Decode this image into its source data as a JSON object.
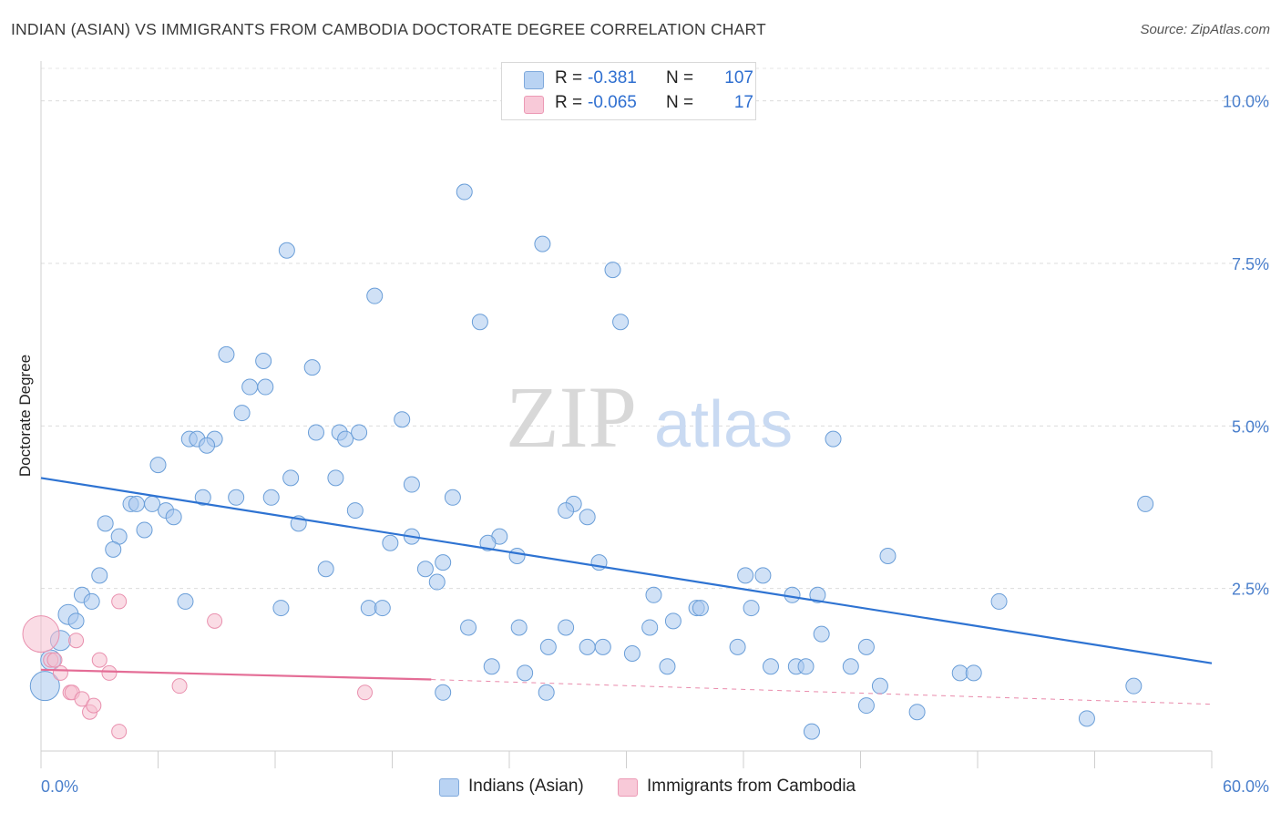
{
  "header": {
    "title": "INDIAN (ASIAN) VS IMMIGRANTS FROM CAMBODIA DOCTORATE DEGREE CORRELATION CHART",
    "source": "Source: ZipAtlas.com"
  },
  "watermark": {
    "zip": "ZIP",
    "atlas": "atlas"
  },
  "colors": {
    "blue_fill": "#a9c8ef",
    "blue_stroke": "#6a9ed8",
    "blue_line": "#2e73d2",
    "pink_fill": "#f6bfd0",
    "pink_stroke": "#e990ae",
    "pink_line": "#e46d96",
    "accent_text": "#2f6fd0"
  },
  "legend": {
    "rows": [
      {
        "r_label": "R =",
        "r_value": "-0.381",
        "n_label": "N =",
        "n_value": "107"
      },
      {
        "r_label": "R =",
        "r_value": "-0.065",
        "n_label": "N =",
        "n_value": "17"
      }
    ]
  },
  "bottom_legend": {
    "series1": "Indians (Asian)",
    "series2": "Immigrants from Cambodia"
  },
  "chart_data": {
    "type": "scatter",
    "title": "INDIAN (ASIAN) VS IMMIGRANTS FROM CAMBODIA DOCTORATE DEGREE CORRELATION CHART",
    "xlabel": "",
    "ylabel": "Doctorate Degree",
    "xlim": [
      0,
      60
    ],
    "ylim": [
      0,
      10.5
    ],
    "x_tick_labels": [
      "0.0%",
      "60.0%"
    ],
    "y_tick_labels": [
      "10.0%",
      "7.5%",
      "5.0%",
      "2.5%"
    ],
    "y_ticks": [
      10.0,
      7.5,
      5.0,
      2.5
    ],
    "grid": true,
    "legend_position": "top-center",
    "series": [
      {
        "name": "Indians (Asian)",
        "color": "#a9c8ef",
        "trend": {
          "x": [
            0,
            60
          ],
          "y": [
            4.2,
            1.35
          ]
        },
        "points": [
          [
            21.7,
            8.6
          ],
          [
            12.6,
            7.7
          ],
          [
            25.7,
            7.8
          ],
          [
            29.3,
            7.4
          ],
          [
            17.1,
            7.0
          ],
          [
            22.5,
            6.6
          ],
          [
            29.7,
            6.6
          ],
          [
            9.5,
            6.1
          ],
          [
            11.4,
            6.0
          ],
          [
            13.9,
            5.9
          ],
          [
            10.7,
            5.6
          ],
          [
            11.5,
            5.6
          ],
          [
            10.3,
            5.2
          ],
          [
            18.5,
            5.1
          ],
          [
            14.1,
            4.9
          ],
          [
            15.3,
            4.9
          ],
          [
            15.6,
            4.8
          ],
          [
            16.3,
            4.9
          ],
          [
            7.6,
            4.8
          ],
          [
            8.0,
            4.8
          ],
          [
            8.9,
            4.8
          ],
          [
            8.5,
            4.7
          ],
          [
            40.6,
            4.8
          ],
          [
            6.0,
            4.4
          ],
          [
            12.8,
            4.2
          ],
          [
            15.1,
            4.2
          ],
          [
            19.0,
            4.1
          ],
          [
            11.8,
            3.9
          ],
          [
            21.1,
            3.9
          ],
          [
            8.3,
            3.9
          ],
          [
            10.0,
            3.9
          ],
          [
            4.6,
            3.8
          ],
          [
            4.9,
            3.8
          ],
          [
            5.7,
            3.8
          ],
          [
            6.4,
            3.7
          ],
          [
            27.3,
            3.8
          ],
          [
            26.9,
            3.7
          ],
          [
            56.6,
            3.8
          ],
          [
            16.1,
            3.7
          ],
          [
            6.8,
            3.6
          ],
          [
            28.0,
            3.6
          ],
          [
            3.3,
            3.5
          ],
          [
            13.2,
            3.5
          ],
          [
            5.3,
            3.4
          ],
          [
            19.0,
            3.3
          ],
          [
            23.5,
            3.3
          ],
          [
            4.0,
            3.3
          ],
          [
            22.9,
            3.2
          ],
          [
            17.9,
            3.2
          ],
          [
            3.7,
            3.1
          ],
          [
            24.4,
            3.0
          ],
          [
            43.4,
            3.0
          ],
          [
            20.6,
            2.9
          ],
          [
            28.6,
            2.9
          ],
          [
            19.7,
            2.8
          ],
          [
            14.6,
            2.8
          ],
          [
            36.1,
            2.7
          ],
          [
            37.0,
            2.7
          ],
          [
            20.3,
            2.6
          ],
          [
            3.0,
            2.7
          ],
          [
            2.1,
            2.4
          ],
          [
            31.4,
            2.4
          ],
          [
            38.5,
            2.4
          ],
          [
            39.8,
            2.4
          ],
          [
            7.4,
            2.3
          ],
          [
            2.6,
            2.3
          ],
          [
            49.1,
            2.3
          ],
          [
            12.3,
            2.2
          ],
          [
            16.8,
            2.2
          ],
          [
            17.5,
            2.2
          ],
          [
            33.6,
            2.2
          ],
          [
            33.8,
            2.2
          ],
          [
            36.4,
            2.2
          ],
          [
            1.4,
            2.1
          ],
          [
            1.8,
            2.0
          ],
          [
            32.4,
            2.0
          ],
          [
            21.9,
            1.9
          ],
          [
            24.5,
            1.9
          ],
          [
            26.9,
            1.9
          ],
          [
            31.2,
            1.9
          ],
          [
            40.0,
            1.8
          ],
          [
            1.0,
            1.7
          ],
          [
            26.0,
            1.6
          ],
          [
            28.0,
            1.6
          ],
          [
            28.8,
            1.6
          ],
          [
            35.7,
            1.6
          ],
          [
            42.3,
            1.6
          ],
          [
            30.3,
            1.5
          ],
          [
            0.5,
            1.4
          ],
          [
            23.1,
            1.3
          ],
          [
            37.4,
            1.3
          ],
          [
            38.7,
            1.3
          ],
          [
            39.2,
            1.3
          ],
          [
            32.1,
            1.3
          ],
          [
            41.5,
            1.3
          ],
          [
            24.8,
            1.2
          ],
          [
            47.1,
            1.2
          ],
          [
            47.8,
            1.2
          ],
          [
            0.2,
            1.0
          ],
          [
            43.0,
            1.0
          ],
          [
            56.0,
            1.0
          ],
          [
            25.9,
            0.9
          ],
          [
            20.6,
            0.9
          ],
          [
            42.3,
            0.7
          ],
          [
            44.9,
            0.6
          ],
          [
            53.6,
            0.5
          ],
          [
            39.5,
            0.3
          ]
        ]
      },
      {
        "name": "Immigrants from Cambodia",
        "color": "#f6bfd0",
        "trend": {
          "x": [
            0,
            20
          ],
          "y": [
            1.25,
            1.1
          ]
        },
        "trend_dashed": {
          "x": [
            20,
            60
          ],
          "y": [
            1.1,
            0.72
          ]
        },
        "points": [
          [
            0.0,
            1.8
          ],
          [
            0.5,
            1.4
          ],
          [
            1.0,
            1.2
          ],
          [
            1.8,
            1.7
          ],
          [
            3.0,
            1.4
          ],
          [
            3.5,
            1.2
          ],
          [
            4.0,
            2.3
          ],
          [
            8.9,
            2.0
          ],
          [
            7.1,
            1.0
          ],
          [
            1.5,
            0.9
          ],
          [
            1.6,
            0.9
          ],
          [
            2.1,
            0.8
          ],
          [
            2.5,
            0.6
          ],
          [
            2.7,
            0.7
          ],
          [
            4.0,
            0.3
          ],
          [
            16.6,
            0.9
          ],
          [
            0.7,
            1.4
          ]
        ]
      }
    ]
  }
}
